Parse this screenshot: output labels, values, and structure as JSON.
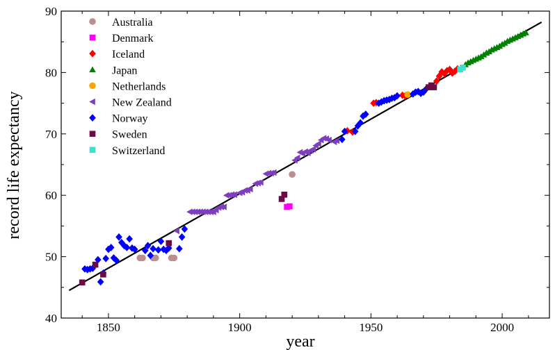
{
  "chart_data": {
    "type": "scatter",
    "title": "",
    "xlabel": "year",
    "ylabel": "record life expectancy",
    "xlim": [
      1832,
      2018
    ],
    "ylim": [
      40,
      90
    ],
    "xticks": [
      1850,
      1900,
      1950,
      2000
    ],
    "yticks": [
      40,
      50,
      60,
      70,
      80,
      90
    ],
    "x_tick_labels": [
      "1850",
      "1900",
      "1950",
      "2000"
    ],
    "y_tick_labels": [
      "40",
      "50",
      "60",
      "70",
      "80",
      "90"
    ],
    "grid": false,
    "legend_position": "top-left",
    "trend_line": {
      "x": [
        1835,
        2015
      ],
      "y": [
        44.5,
        88.2
      ],
      "color": "#000000"
    },
    "series": [
      {
        "name": "Australia",
        "marker": "circle",
        "color": "#bc8f8f",
        "points": [
          [
            1862,
            49.8
          ],
          [
            1863,
            49.8
          ],
          [
            1867,
            49.8
          ],
          [
            1868,
            49.8
          ],
          [
            1874,
            49.8
          ],
          [
            1875,
            49.8
          ],
          [
            1920,
            63.4
          ]
        ]
      },
      {
        "name": "Denmark",
        "marker": "square",
        "color": "#ff00ff",
        "points": [
          [
            1918,
            58.1
          ],
          [
            1919,
            58.2
          ]
        ]
      },
      {
        "name": "Iceland",
        "marker": "diamond",
        "color": "#ff0000",
        "points": [
          [
            1941,
            70.5
          ],
          [
            1943,
            70.3
          ],
          [
            1951,
            75.0
          ],
          [
            1952,
            75.1
          ],
          [
            1962,
            76.3
          ],
          [
            1963,
            76.2
          ],
          [
            1975,
            78.6
          ],
          [
            1976,
            79.4
          ],
          [
            1977,
            80.1
          ],
          [
            1978,
            79.8
          ],
          [
            1979,
            80.3
          ],
          [
            1980,
            80.5
          ],
          [
            1981,
            79.9
          ],
          [
            1982,
            80.2
          ],
          [
            1983,
            80.6
          ]
        ]
      },
      {
        "name": "Japan",
        "marker": "triangle-up",
        "color": "#008000",
        "points": [
          [
            1986,
            81.3
          ],
          [
            1987,
            81.6
          ],
          [
            1988,
            81.8
          ],
          [
            1989,
            82.0
          ],
          [
            1990,
            82.2
          ],
          [
            1991,
            82.4
          ],
          [
            1992,
            82.6
          ],
          [
            1993,
            82.9
          ],
          [
            1994,
            83.2
          ],
          [
            1995,
            83.4
          ],
          [
            1996,
            83.7
          ],
          [
            1997,
            83.9
          ],
          [
            1998,
            84.1
          ],
          [
            1999,
            84.3
          ],
          [
            2000,
            84.6
          ],
          [
            2001,
            84.8
          ],
          [
            2002,
            85.1
          ],
          [
            2003,
            85.3
          ],
          [
            2004,
            85.5
          ],
          [
            2005,
            85.7
          ],
          [
            2006,
            85.9
          ],
          [
            2007,
            86.1
          ],
          [
            2008,
            86.3
          ],
          [
            2009,
            86.5
          ]
        ]
      },
      {
        "name": "Netherlands",
        "marker": "circle",
        "color": "#ffa500",
        "points": [
          [
            1964,
            76.4
          ]
        ]
      },
      {
        "name": "New Zealand",
        "marker": "triangle-left",
        "color": "#7e3fbf",
        "points": [
          [
            1876,
            54.2
          ],
          [
            1881,
            57.3
          ],
          [
            1882,
            57.3
          ],
          [
            1883,
            57.3
          ],
          [
            1884,
            57.3
          ],
          [
            1885,
            57.3
          ],
          [
            1886,
            57.3
          ],
          [
            1887,
            57.3
          ],
          [
            1888,
            57.3
          ],
          [
            1889,
            57.3
          ],
          [
            1890,
            57.3
          ],
          [
            1891,
            57.6
          ],
          [
            1892,
            58.0
          ],
          [
            1893,
            58.1
          ],
          [
            1894,
            58.1
          ],
          [
            1895,
            60.0
          ],
          [
            1896,
            60.0
          ],
          [
            1897,
            60.1
          ],
          [
            1898,
            60.1
          ],
          [
            1900,
            60.4
          ],
          [
            1901,
            60.5
          ],
          [
            1902,
            60.8
          ],
          [
            1903,
            60.8
          ],
          [
            1904,
            61.0
          ],
          [
            1906,
            61.9
          ],
          [
            1907,
            62.0
          ],
          [
            1908,
            62.1
          ],
          [
            1910,
            63.5
          ],
          [
            1911,
            63.6
          ],
          [
            1912,
            63.6
          ],
          [
            1913,
            63.7
          ],
          [
            1921,
            65.7
          ],
          [
            1922,
            66.1
          ],
          [
            1923,
            67.0
          ],
          [
            1924,
            66.8
          ],
          [
            1925,
            67.1
          ],
          [
            1926,
            66.9
          ],
          [
            1927,
            67.3
          ],
          [
            1928,
            67.5
          ],
          [
            1929,
            68.1
          ],
          [
            1930,
            68.4
          ],
          [
            1931,
            69.0
          ],
          [
            1932,
            69.3
          ],
          [
            1933,
            69.2
          ],
          [
            1934,
            69.0
          ],
          [
            1936,
            68.7
          ],
          [
            1937,
            68.9
          ]
        ]
      },
      {
        "name": "Norway",
        "marker": "diamond",
        "color": "#0000ff",
        "points": [
          [
            1841,
            48.0
          ],
          [
            1842,
            47.9
          ],
          [
            1843,
            48.0
          ],
          [
            1844,
            48.1
          ],
          [
            1846,
            49.5
          ],
          [
            1847,
            45.9
          ],
          [
            1848,
            47.3
          ],
          [
            1849,
            49.7
          ],
          [
            1850,
            51.2
          ],
          [
            1851,
            51.5
          ],
          [
            1852,
            49.8
          ],
          [
            1853,
            49.4
          ],
          [
            1854,
            53.2
          ],
          [
            1855,
            52.3
          ],
          [
            1856,
            51.8
          ],
          [
            1857,
            51.5
          ],
          [
            1858,
            52.9
          ],
          [
            1859,
            51.4
          ],
          [
            1860,
            51.2
          ],
          [
            1864,
            51.0
          ],
          [
            1865,
            51.8
          ],
          [
            1866,
            50.2
          ],
          [
            1867,
            51.3
          ],
          [
            1869,
            51.1
          ],
          [
            1870,
            52.5
          ],
          [
            1871,
            51.2
          ],
          [
            1872,
            51.0
          ],
          [
            1873,
            51.4
          ],
          [
            1877,
            51.3
          ],
          [
            1878,
            53.2
          ],
          [
            1879,
            54.5
          ],
          [
            1939,
            69.1
          ],
          [
            1940,
            70.4
          ],
          [
            1944,
            70.4
          ],
          [
            1945,
            71.3
          ],
          [
            1946,
            71.8
          ],
          [
            1947,
            72.9
          ],
          [
            1948,
            73.2
          ],
          [
            1953,
            75.0
          ],
          [
            1954,
            75.2
          ],
          [
            1955,
            75.4
          ],
          [
            1956,
            75.5
          ],
          [
            1957,
            75.6
          ],
          [
            1958,
            75.8
          ],
          [
            1959,
            75.9
          ],
          [
            1960,
            76.2
          ],
          [
            1966,
            76.5
          ],
          [
            1967,
            76.8
          ],
          [
            1968,
            76.9
          ],
          [
            1969,
            76.6
          ],
          [
            1970,
            76.8
          ],
          [
            1971,
            77.3
          ]
        ]
      },
      {
        "name": "Sweden",
        "marker": "square",
        "color": "#6b0b43",
        "points": [
          [
            1840,
            45.8
          ],
          [
            1845,
            48.7
          ],
          [
            1848,
            47.1
          ],
          [
            1873,
            52.2
          ],
          [
            1916,
            59.4
          ],
          [
            1917,
            60.1
          ],
          [
            1972,
            77.6
          ],
          [
            1973,
            77.9
          ],
          [
            1974,
            77.6
          ]
        ]
      },
      {
        "name": "Switzerland",
        "marker": "square",
        "color": "#40e0d0",
        "points": [
          [
            1984,
            80.5
          ],
          [
            1985,
            80.8
          ]
        ]
      }
    ]
  }
}
